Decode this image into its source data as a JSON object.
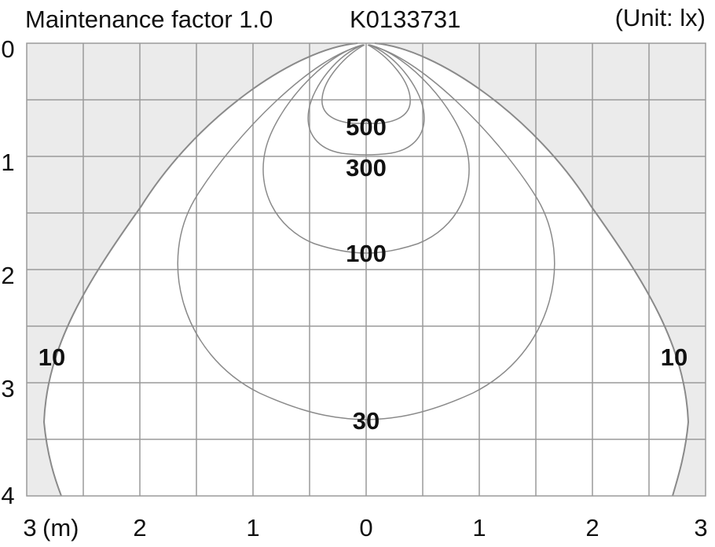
{
  "header": {
    "maintenance": "Maintenance factor 1.0",
    "model": "K0133731",
    "unit": "(Unit: lx)"
  },
  "x_axis": {
    "tick_labels": [
      "3",
      "2",
      "1",
      "0",
      "1",
      "2",
      "3"
    ],
    "unit_label": "(m)"
  },
  "y_axis": {
    "tick_labels": [
      "0",
      "1",
      "2",
      "3",
      "4"
    ]
  },
  "colors": {
    "outside_fill": "#ebebeb",
    "inside_fill": "#ffffff",
    "grid": "#9a9a9a",
    "contour": "#8a8a8a",
    "text": "#111111"
  },
  "chart_data": {
    "type": "contour",
    "x_range": [
      -3,
      3
    ],
    "y_range": [
      0,
      4
    ],
    "grid_step": 0.5,
    "contours": [
      {
        "label": "500",
        "max_depth": 0.85,
        "max_half_width": 0.52
      },
      {
        "label": "300",
        "max_depth": 1.3,
        "max_half_width": 0.92
      },
      {
        "label": "100",
        "max_depth": 1.9,
        "max_half_width": 1.65
      },
      {
        "label": "30",
        "max_depth": 3.35,
        "max_half_width": 2.45
      },
      {
        "label": "10",
        "label_secondary": "10",
        "max_depth": 4.0,
        "max_half_width": 2.85
      }
    ]
  }
}
